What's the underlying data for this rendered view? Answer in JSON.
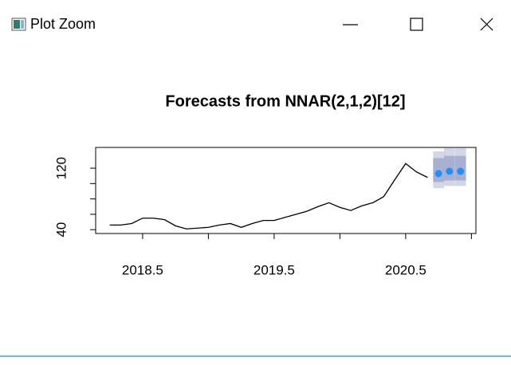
{
  "window": {
    "title": "Plot Zoom"
  },
  "chart_data": {
    "type": "line",
    "title": "Forecasts from NNAR(2,1,2)[12]",
    "x": [
      2018.25,
      2018.333,
      2018.417,
      2018.5,
      2018.583,
      2018.667,
      2018.75,
      2018.833,
      2018.917,
      2019.0,
      2019.083,
      2019.167,
      2019.25,
      2019.333,
      2019.417,
      2019.5,
      2019.583,
      2019.667,
      2019.75,
      2019.833,
      2019.917,
      2020.0,
      2020.083,
      2020.167,
      2020.25,
      2020.333,
      2020.417,
      2020.5,
      2020.583,
      2020.667
    ],
    "values": [
      46,
      46,
      48,
      55,
      55,
      53,
      45,
      41,
      42,
      43,
      46,
      48,
      43,
      48,
      52,
      52,
      56,
      60,
      64,
      70,
      75,
      69,
      65,
      71,
      75,
      83,
      105,
      126,
      115,
      108
    ],
    "color": "#000000",
    "forecast": {
      "x": [
        2020.75,
        2020.833,
        2020.917
      ],
      "values": [
        113,
        116,
        116
      ],
      "lo80": [
        102,
        104,
        104
      ],
      "hi80": [
        133,
        136,
        136
      ],
      "lo95": [
        94,
        97,
        97
      ],
      "hi95": [
        142,
        146,
        146
      ],
      "color": "#1e90ff",
      "color80": "#a9afd1",
      "color95": "#d3d6e6"
    },
    "xlim": [
      2018.143,
      2021.034
    ],
    "xticks": [
      2018.5,
      2019.5,
      2020.5
    ],
    "xminor_ticks": [
      2019.0,
      2020.0,
      2021.0
    ],
    "ylim": [
      35,
      147
    ],
    "yticks": [
      40,
      120
    ],
    "yminor_ticks": [
      60,
      80,
      100
    ],
    "grid": false
  }
}
